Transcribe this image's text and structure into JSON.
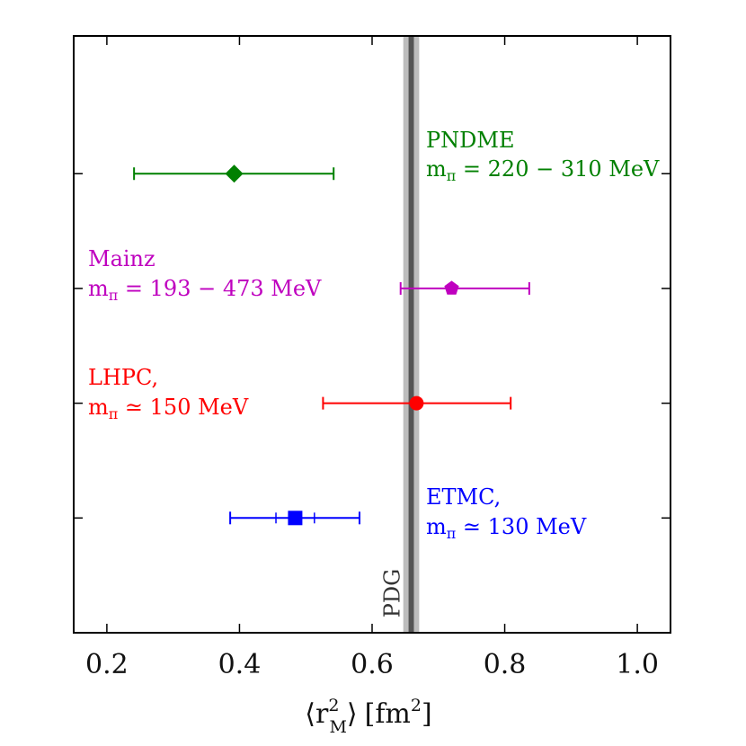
{
  "chart_data": {
    "type": "scatter",
    "title": "",
    "xlabel": {
      "open": "⟨",
      "r": "r",
      "sup": "2",
      "sub": "M",
      "close": "⟩",
      "unit": "[fm",
      "unit_sup": "2",
      "unit_close": "]"
    },
    "ylabel": "",
    "xlim": [
      0.15,
      1.05
    ],
    "ylim": [
      0,
      5.2
    ],
    "xticks": [
      "0.2",
      "0.4",
      "0.6",
      "0.8",
      "1.0"
    ],
    "reference_band": {
      "label": "PDG",
      "center": 0.659,
      "inner_half_width": 0.004,
      "outer_half_width": 0.012
    },
    "series": [
      {
        "name": "PNDME",
        "note_prefix": "m",
        "note_sub": "π",
        "note_rest": " = 220 − 310 MeV",
        "color": "#008000",
        "marker": "diamond",
        "x": 0.392,
        "y": 4,
        "xerr_low": 0.241,
        "xerr_high": 0.542
      },
      {
        "name": "Mainz",
        "note_prefix": "m",
        "note_sub": "π",
        "note_rest": " = 193 − 473 MeV",
        "color": "#bf00bf",
        "marker": "pentagon",
        "x": 0.72,
        "y": 3,
        "xerr_low": 0.643,
        "xerr_high": 0.837
      },
      {
        "name": "LHPC,",
        "note_prefix": "m",
        "note_sub": "π",
        "note_rest": " ≃ 150 MeV",
        "color": "#ff0000",
        "marker": "circle",
        "x": 0.667,
        "y": 2,
        "xerr_low": 0.526,
        "xerr_high": 0.809
      },
      {
        "name": "ETMC,",
        "note_prefix": "m",
        "note_sub": "π",
        "note_rest": " ≃ 130 MeV",
        "color": "#0000ff",
        "marker": "square",
        "x": 0.484,
        "y": 1,
        "xerr_low": 0.386,
        "xerr_high": 0.581,
        "stat_low": 0.455,
        "stat_high": 0.513
      }
    ]
  }
}
